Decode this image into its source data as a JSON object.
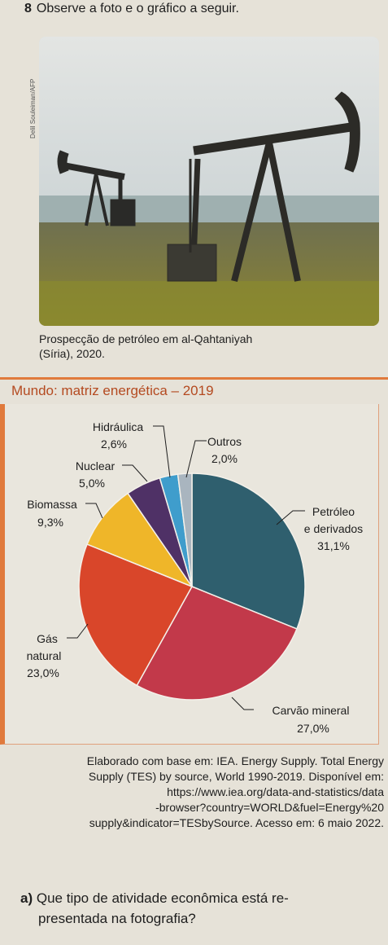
{
  "question": {
    "number": "8",
    "prompt": "Observe a foto e o gráfico a seguir."
  },
  "photo": {
    "credit": "Delil Souleiman/AFP",
    "caption_line1": "Prospecção de petróleo em al-Qahtaniyah",
    "caption_line2": "(Síria), 2020."
  },
  "chart_data": {
    "type": "pie",
    "title": "Mundo: matriz energética – 2019",
    "unit": "%",
    "slices": [
      {
        "label": "Petróleo e derivados",
        "value": 31.1,
        "display": "31,1%",
        "color": "#2f5f6e"
      },
      {
        "label": "Carvão mineral",
        "value": 27.0,
        "display": "27,0%",
        "color": "#c2394a"
      },
      {
        "label": "Gás natural",
        "value": 23.0,
        "display": "23,0%",
        "color": "#d9462a"
      },
      {
        "label": "Biomassa",
        "value": 9.3,
        "display": "9,3%",
        "color": "#efb629"
      },
      {
        "label": "Nuclear",
        "value": 5.0,
        "display": "5,0%",
        "color": "#4f3166"
      },
      {
        "label": "Hidráulica",
        "value": 2.6,
        "display": "2,6%",
        "color": "#3f9dcc"
      },
      {
        "label": "Outros",
        "value": 2.0,
        "display": "2,0%",
        "color": "#a9b5bf"
      }
    ]
  },
  "labels": {
    "petroleo_l1": "Petróleo",
    "petroleo_l2": "e derivados",
    "petroleo_v": "31,1%",
    "carvao_l1": "Carvão mineral",
    "carvao_v": "27,0%",
    "gas_l1": "Gás",
    "gas_l2": "natural",
    "gas_v": "23,0%",
    "biomassa_l1": "Biomassa",
    "biomassa_v": "9,3%",
    "nuclear_l1": "Nuclear",
    "nuclear_v": "5,0%",
    "hidraulica_l1": "Hidráulica",
    "hidraulica_v": "2,6%",
    "outros_l1": "Outros",
    "outros_v": "2,0%"
  },
  "source": {
    "line1": "Elaborado com base em: IEA. Energy Supply. Total Energy",
    "line2": "Supply (TES) by source, World 1990-2019. Disponível em:",
    "line3": "https://www.iea.org/data-and-statistics/data",
    "line4": "-browser?country=WORLD&fuel=Energy%20",
    "line5": "supply&indicator=TESbySource. Acesso em: 6 maio 2022."
  },
  "question_a": {
    "letter": "a)",
    "line1": "Que tipo de atividade econômica está re-",
    "line2": "presentada na fotografia?"
  },
  "colors": {
    "accent": "#e07a3c",
    "title": "#b44a20"
  }
}
